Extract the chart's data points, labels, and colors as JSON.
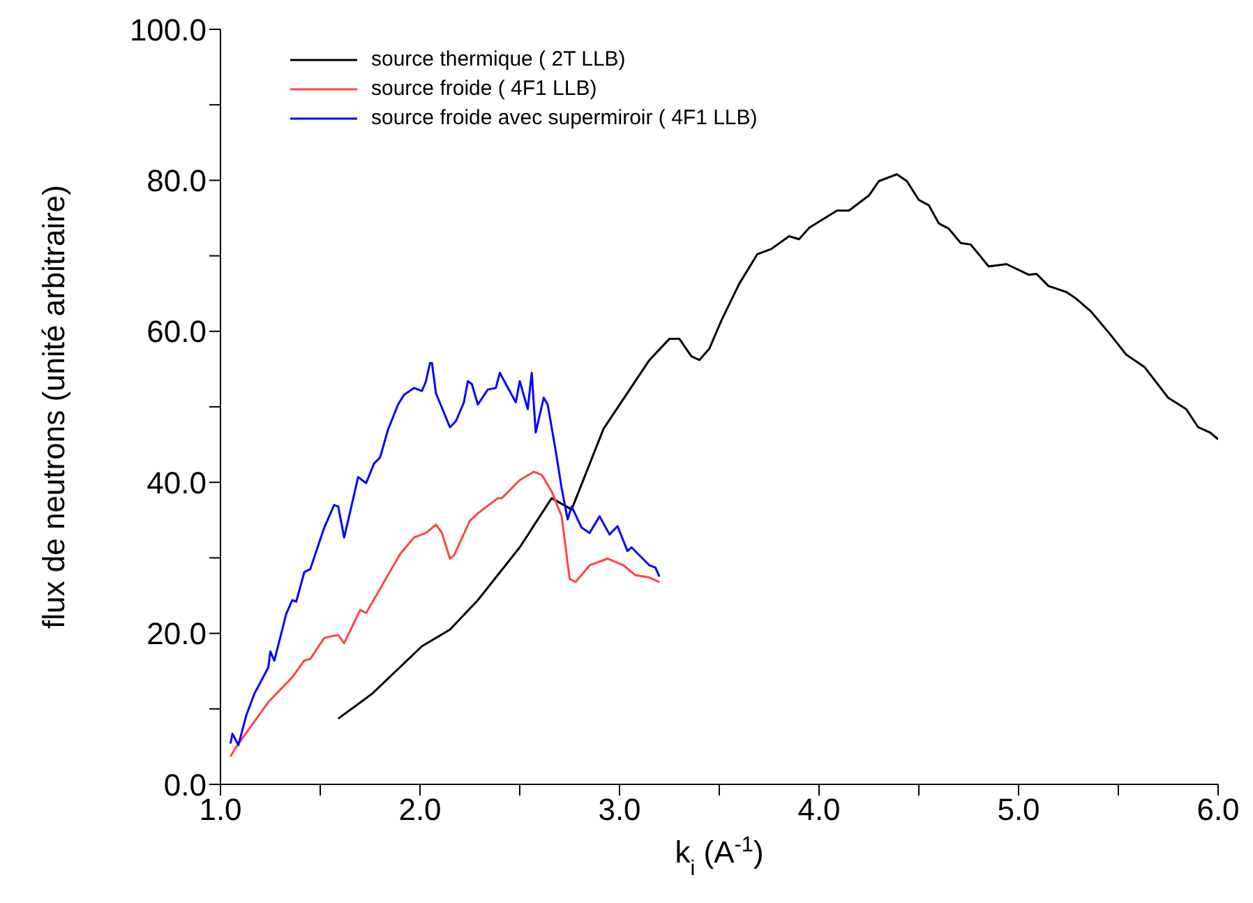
{
  "chart_data": {
    "type": "line",
    "xlabel": "k$_{i}$ (A$^{-1}$)",
    "ylabel": "flux de neutrons (unité arbitraire)",
    "xlim": [
      1.0,
      6.0
    ],
    "ylim": [
      0,
      100
    ],
    "xticks": [
      {
        "value": 1,
        "label": "1.0"
      },
      {
        "value": 1.5,
        "label": null
      },
      {
        "value": 2,
        "label": "2.0"
      },
      {
        "value": 2.5,
        "label": null
      },
      {
        "value": 3,
        "label": "3.0"
      },
      {
        "value": 3.5,
        "label": null
      },
      {
        "value": 4,
        "label": "4.0"
      },
      {
        "value": 4.5,
        "label": null
      },
      {
        "value": 5,
        "label": "5.0"
      },
      {
        "value": 5.5,
        "label": null
      },
      {
        "value": 6,
        "label": "6.0"
      }
    ],
    "yticks": [
      {
        "value": 0,
        "label": "0.0"
      },
      {
        "value": 10,
        "label": null
      },
      {
        "value": 20,
        "label": "20.0"
      },
      {
        "value": 30,
        "label": null
      },
      {
        "value": 40,
        "label": "40.0"
      },
      {
        "value": 50,
        "label": null
      },
      {
        "value": 60,
        "label": "60.0"
      },
      {
        "value": 70,
        "label": null
      },
      {
        "value": 80,
        "label": "80.0"
      },
      {
        "value": 90,
        "label": null
      },
      {
        "value": 100,
        "label": "100.0"
      }
    ],
    "grid": false,
    "legend": "top left",
    "marker": "none",
    "line_style": "solid",
    "series": [
      {
        "name": "source thermique ( 2T LLB)",
        "color": "#000000",
        "x": [
          1.59,
          1.76,
          2.01,
          2.15,
          2.29,
          2.5,
          2.66,
          2.76,
          2.92,
          3.15,
          3.25,
          3.3,
          3.36,
          3.4,
          3.45,
          3.51,
          3.6,
          3.69,
          3.76,
          3.85,
          3.9,
          3.95,
          4.09,
          4.15,
          4.25,
          4.3,
          4.39,
          4.44,
          4.5,
          4.55,
          4.6,
          4.65,
          4.71,
          4.76,
          4.85,
          4.94,
          5.05,
          5.09,
          5.15,
          5.24,
          5.29,
          5.36,
          5.45,
          5.54,
          5.63,
          5.75,
          5.84,
          5.9,
          5.96,
          6.0
        ],
        "values": [
          8.7,
          12.0,
          18.3,
          20.5,
          24.4,
          31.4,
          37.9,
          36.4,
          47.1,
          56.2,
          59.0,
          59.0,
          56.7,
          56.2,
          57.7,
          61.4,
          66.3,
          70.2,
          70.9,
          72.6,
          72.2,
          73.7,
          76.0,
          76.0,
          78.0,
          79.9,
          80.8,
          79.9,
          77.4,
          76.7,
          74.3,
          73.6,
          71.7,
          71.5,
          68.6,
          68.9,
          67.5,
          67.6,
          66.0,
          65.2,
          64.3,
          62.7,
          59.9,
          56.9,
          55.3,
          51.2,
          49.7,
          47.3,
          46.6,
          45.7
        ]
      },
      {
        "name": "source froide ( 4F1 LLB)",
        "color": "#ff4444",
        "x": [
          1.05,
          1.08,
          1.24,
          1.36,
          1.42,
          1.45,
          1.52,
          1.59,
          1.62,
          1.7,
          1.73,
          1.8,
          1.9,
          1.97,
          2.03,
          2.08,
          2.11,
          2.15,
          2.17,
          2.25,
          2.29,
          2.39,
          2.41,
          2.5,
          2.57,
          2.61,
          2.66,
          2.71,
          2.75,
          2.78,
          2.85,
          2.94,
          3.02,
          3.08,
          3.15,
          3.2
        ],
        "values": [
          3.7,
          5.0,
          10.9,
          14.2,
          16.4,
          16.6,
          19.4,
          19.8,
          18.7,
          23.1,
          22.7,
          25.9,
          30.5,
          32.7,
          33.3,
          34.4,
          33.3,
          29.9,
          30.3,
          34.9,
          35.9,
          37.9,
          37.9,
          40.3,
          41.4,
          41.0,
          38.8,
          35.5,
          27.2,
          26.8,
          29.0,
          29.9,
          29.0,
          27.7,
          27.4,
          26.8
        ]
      },
      {
        "name": "source froide avec supermiroir ( 4F1 LLB)",
        "color": "#0000ff",
        "x": [
          1.05,
          1.06,
          1.09,
          1.13,
          1.17,
          1.24,
          1.25,
          1.27,
          1.33,
          1.36,
          1.38,
          1.42,
          1.45,
          1.52,
          1.57,
          1.59,
          1.62,
          1.69,
          1.73,
          1.77,
          1.8,
          1.84,
          1.89,
          1.92,
          1.97,
          2.01,
          2.03,
          2.05,
          2.06,
          2.08,
          2.15,
          2.18,
          2.22,
          2.24,
          2.26,
          2.29,
          2.34,
          2.38,
          2.4,
          2.48,
          2.5,
          2.54,
          2.56,
          2.58,
          2.62,
          2.64,
          2.68,
          2.71,
          2.74,
          2.76,
          2.81,
          2.85,
          2.9,
          2.95,
          2.99,
          3.04,
          3.06,
          3.15,
          3.18,
          3.2
        ],
        "values": [
          5.4,
          6.7,
          5.2,
          9.2,
          12.0,
          15.5,
          17.6,
          16.4,
          22.6,
          24.4,
          24.2,
          28.1,
          28.5,
          34.0,
          37.0,
          36.8,
          32.7,
          40.7,
          39.9,
          42.5,
          43.3,
          47.0,
          50.3,
          51.6,
          52.5,
          52.1,
          53.4,
          55.8,
          55.8,
          51.8,
          47.3,
          48.1,
          50.6,
          53.4,
          53.0,
          50.3,
          52.3,
          52.5,
          54.5,
          50.6,
          53.4,
          49.7,
          54.5,
          46.6,
          51.2,
          50.3,
          44.2,
          39.2,
          35.1,
          36.8,
          34.0,
          33.3,
          35.5,
          33.1,
          34.2,
          30.9,
          31.4,
          29.0,
          28.7,
          27.5
        ]
      }
    ]
  }
}
